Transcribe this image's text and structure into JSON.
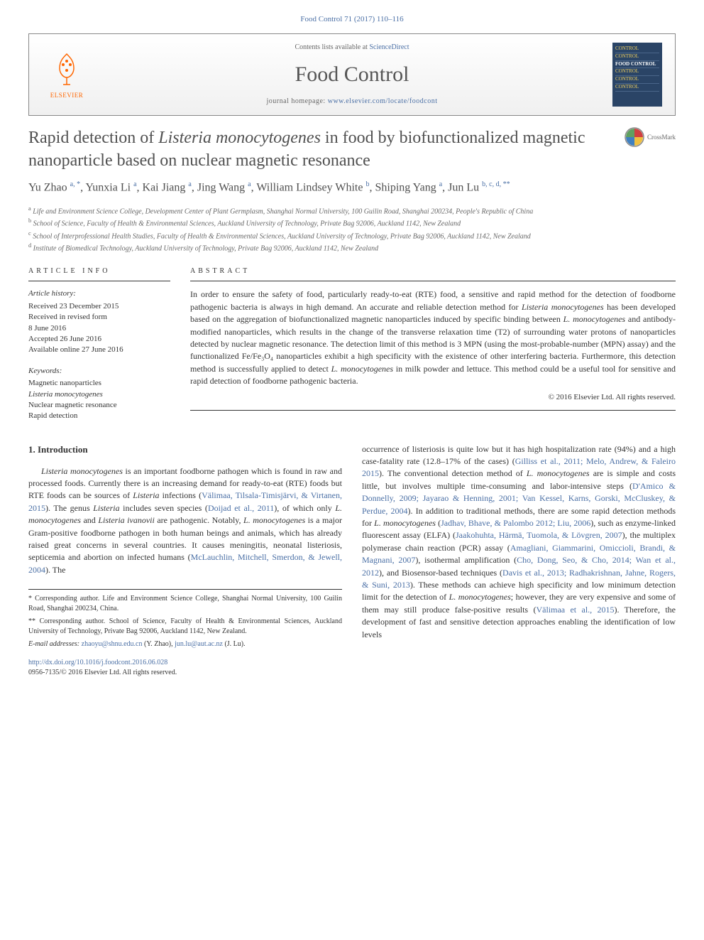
{
  "citation": "Food Control 71 (2017) 110–116",
  "header": {
    "contents_prefix": "Contents lists available at ",
    "contents_link": "ScienceDirect",
    "journal": "Food Control",
    "homepage_prefix": "journal homepage: ",
    "homepage_url": "www.elsevier.com/locate/foodcont",
    "publisher": "ELSEVIER",
    "cover_text": "CONTROL"
  },
  "title_html": "Rapid detection of <em>Listeria monocytogenes</em> in food by biofunctionalized magnetic nanoparticle based on nuclear magnetic resonance",
  "crossmark": "CrossMark",
  "authors_html": "Yu Zhao <sup>a, *</sup>, Yunxia Li <sup>a</sup>, Kai Jiang <sup>a</sup>, Jing Wang <sup>a</sup>, William Lindsey White <sup>b</sup>, Shiping Yang <sup>a</sup>, Jun Lu <sup>b, c, d, **</sup>",
  "affiliations": [
    {
      "sup": "a",
      "text": "Life and Environment Science College, Development Center of Plant Germplasm, Shanghai Normal University, 100 Guilin Road, Shanghai 200234, People's Republic of China"
    },
    {
      "sup": "b",
      "text": "School of Science, Faculty of Health & Environmental Sciences, Auckland University of Technology, Private Bag 92006, Auckland 1142, New Zealand"
    },
    {
      "sup": "c",
      "text": "School of Interprofessional Health Studies, Faculty of Health & Environmental Sciences, Auckland University of Technology, Private Bag 92006, Auckland 1142, New Zealand"
    },
    {
      "sup": "d",
      "text": "Institute of Biomedical Technology, Auckland University of Technology, Private Bag 92006, Auckland 1142, New Zealand"
    }
  ],
  "info": {
    "heading": "ARTICLE INFO",
    "history_label": "Article history:",
    "history": [
      "Received 23 December 2015",
      "Received in revised form",
      "8 June 2016",
      "Accepted 26 June 2016",
      "Available online 27 June 2016"
    ],
    "keywords_label": "Keywords:",
    "keywords": [
      "Magnetic nanoparticles",
      "<em>Listeria monocytogenes</em>",
      "Nuclear magnetic resonance",
      "Rapid detection"
    ]
  },
  "abstract": {
    "heading": "ABSTRACT",
    "text_html": "In order to ensure the safety of food, particularly ready-to-eat (RTE) food, a sensitive and rapid method for the detection of foodborne pathogenic bacteria is always in high demand. An accurate and reliable detection method for <em>Listeria monocytogenes</em> has been developed based on the aggregation of biofunctionalized magnetic nanoparticles induced by specific binding between <em>L. monocytogenes</em> and antibody-modified nanoparticles, which results in the change of the transverse relaxation time (T2) of surrounding water protons of nanoparticles detected by nuclear magnetic resonance. The detection limit of this method is 3 MPN (using the most-probable-number (MPN) assay) and the functionalized Fe/Fe₃O₄ nanoparticles exhibit a high specificity with the existence of other interfering bacteria. Furthermore, this detection method is successfully applied to detect <em>L. monocytogenes</em> in milk powder and lettuce. This method could be a useful tool for sensitive and rapid detection of foodborne pathogenic bacteria.",
    "copyright": "© 2016 Elsevier Ltd. All rights reserved."
  },
  "body": {
    "section_heading": "1. Introduction",
    "col1_html": "<em>Listeria monocytogenes</em> is an important foodborne pathogen which is found in raw and processed foods. Currently there is an increasing demand for ready-to-eat (RTE) foods but RTE foods can be sources of <em>Listeria</em> infections (<span class=\"ref\">Välimaa, Tilsala-Timisjärvi, & Virtanen, 2015</span>). The genus <em>Listeria</em> includes seven species (<span class=\"ref\">Doijad et al., 2011</span>), of which only <em>L. monocytogenes</em> and <em>Listeria ivanovii</em> are pathogenic. Notably, <em>L. monocytogenes</em> is a major Gram-positive foodborne pathogen in both human beings and animals, which has already raised great concerns in several countries. It causes meningitis, neonatal listeriosis, septicemia and abortion on infected humans (<span class=\"ref\">McLauchlin, Mitchell, Smerdon, & Jewell, 2004</span>). The",
    "col2_html": "occurrence of listeriosis is quite low but it has high hospitalization rate (94%) and a high case-fatality rate (12.8–17% of the cases) (<span class=\"ref\">Gilliss et al., 2011; Melo, Andrew, & Faleiro 2015</span>). The conventional detection method of <em>L. monocytogenes</em> are is simple and costs little, but involves multiple time-consuming and labor-intensive steps (<span class=\"ref\">D'Amico & Donnelly, 2009; Jayarao & Henning, 2001; Van Kessel, Karns, Gorski, McCluskey, & Perdue, 2004</span>). In addition to traditional methods, there are some rapid detection methods for <em>L. monocytogenes</em> (<span class=\"ref\">Jadhav, Bhave, & Palombo 2012; Liu, 2006</span>), such as enzyme-linked fluorescent assay (ELFA) (<span class=\"ref\">Jaakohuhta, Härmä, Tuomola, & Lövgren, 2007</span>), the multiplex polymerase chain reaction (PCR) assay (<span class=\"ref\">Amagliani, Giammarini, Omiccioli, Brandi, & Magnani, 2007</span>), isothermal amplification (<span class=\"ref\">Cho, Dong, Seo, & Cho, 2014; Wan et al., 2012</span>), and Biosensor-based techniques (<span class=\"ref\">Davis et al., 2013; Radhakrishnan, Jahne, Rogers, & Suni, 2013</span>). These methods can achieve high specificity and low minimum detection limit for the detection of <em>L. monocytogenes</em>; however, they are very expensive and some of them may still produce false-positive results (<span class=\"ref\">Välimaa et al., 2015</span>). Therefore, the development of fast and sensitive detection approaches enabling the identification of low levels"
  },
  "footnotes": {
    "fn1": "* Corresponding author. Life and Environment Science College, Shanghai Normal University, 100 Guilin Road, Shanghai 200234, China.",
    "fn2": "** Corresponding author. School of Science, Faculty of Health & Environmental Sciences, Auckland University of Technology, Private Bag 92006, Auckland 1142, New Zealand.",
    "email_label": "E-mail addresses:",
    "email1": "zhaoyu@shnu.edu.cn",
    "email1_name": "(Y. Zhao),",
    "email2": "jun.lu@aut.ac.nz",
    "email2_name": "(J. Lu)."
  },
  "bottom": {
    "doi": "http://dx.doi.org/10.1016/j.foodcont.2016.06.028",
    "issn_line": "0956-7135/© 2016 Elsevier Ltd. All rights reserved."
  },
  "colors": {
    "link": "#4a6fa5",
    "text": "#333333",
    "orange": "#ff6600",
    "cover_bg": "#2a4466",
    "cover_text": "#f0d060"
  }
}
